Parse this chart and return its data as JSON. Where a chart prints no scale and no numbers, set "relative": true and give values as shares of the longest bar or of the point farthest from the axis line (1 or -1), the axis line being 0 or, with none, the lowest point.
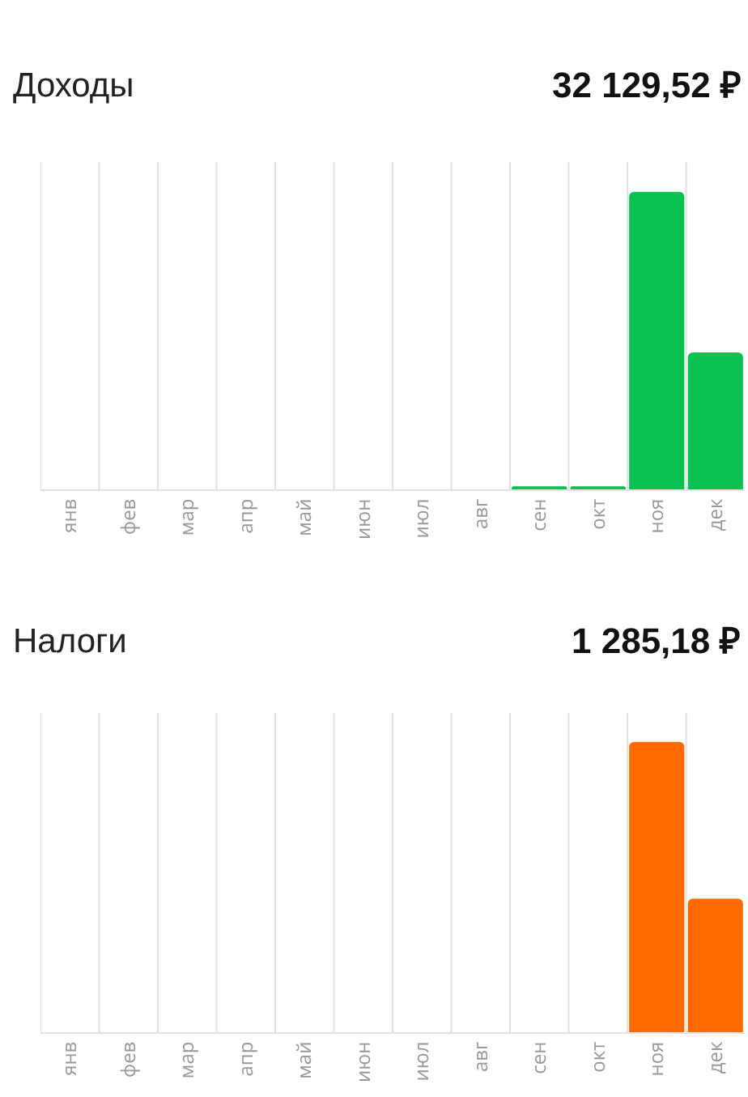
{
  "chart_data": [
    {
      "type": "bar",
      "title": "Доходы",
      "subtitle": "32 129,52 ₽",
      "categories": [
        "янв",
        "фев",
        "мар",
        "апр",
        "май",
        "июн",
        "июл",
        "авг",
        "сен",
        "окт",
        "ноя",
        "дек"
      ],
      "values": [
        0,
        0,
        0,
        0,
        0,
        0,
        0,
        0,
        0.01,
        0.01,
        1,
        0.46
      ],
      "color": "#08c150",
      "relative": true,
      "grid": "x"
    },
    {
      "type": "bar",
      "title": "Налоги",
      "subtitle": "1 285,18 ₽",
      "categories": [
        "янв",
        "фев",
        "мар",
        "апр",
        "май",
        "июн",
        "июл",
        "авг",
        "сен",
        "окт",
        "ноя",
        "дек"
      ],
      "values": [
        0,
        0,
        0,
        0,
        0,
        0,
        0,
        0,
        0,
        0,
        1,
        0.46
      ],
      "color": "#ff6a00",
      "relative": true,
      "grid": "x"
    }
  ]
}
